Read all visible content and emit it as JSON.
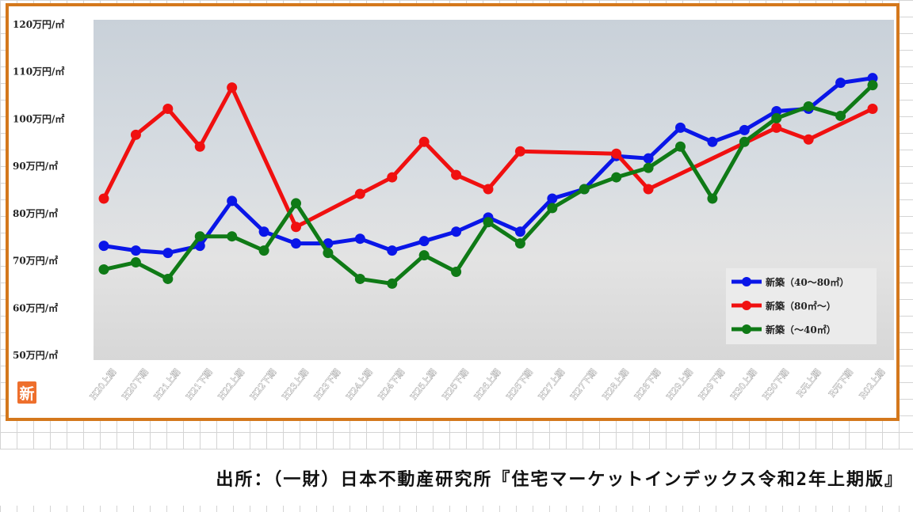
{
  "source_note": "出所：（一財）日本不動産研究所『住宅マーケットインデックス令和2年上期版』",
  "logo_text": "新",
  "chart_data": {
    "type": "line",
    "title": "",
    "xlabel": "",
    "ylabel": "",
    "ylim": [
      50,
      120
    ],
    "y_ticks": [
      {
        "value": 50,
        "label": "50万円/㎡"
      },
      {
        "value": 60,
        "label": "60万円/㎡"
      },
      {
        "value": 70,
        "label": "70万円/㎡"
      },
      {
        "value": 80,
        "label": "80万円/㎡"
      },
      {
        "value": 90,
        "label": "90万円/㎡"
      },
      {
        "value": 100,
        "label": "100万円/㎡"
      },
      {
        "value": 110,
        "label": "110万円/㎡"
      },
      {
        "value": 120,
        "label": "120万円/㎡"
      }
    ],
    "categories": [
      "H20上期",
      "H20下期",
      "H21上期",
      "H21下期",
      "H22上期",
      "H22下期",
      "H23上期",
      "H23下期",
      "H24上期",
      "H24下期",
      "H25上期",
      "H25下期",
      "H26上期",
      "H26下期",
      "H27上期",
      "H27下期",
      "H28上期",
      "H28下期",
      "H29上期",
      "H29下期",
      "H30上期",
      "H30下期",
      "R元上期",
      "R元下期",
      "R02上期"
    ],
    "grid": false,
    "legend_position": "bottom-right",
    "series": [
      {
        "name": "新築（40～80㎡）",
        "color": "#0a16e8",
        "values": [
          73,
          72,
          71.5,
          73,
          82.5,
          76,
          73.5,
          73.5,
          74.5,
          72,
          74,
          76,
          79,
          76,
          83,
          85,
          92,
          91.5,
          98,
          95,
          97.5,
          101.5,
          102,
          107.5,
          108.5
        ]
      },
      {
        "name": "新築（80㎡～）",
        "color": "#f01010",
        "values": [
          83,
          96.5,
          102,
          94,
          106.5,
          null,
          77,
          null,
          84,
          87.5,
          95,
          88,
          85,
          93,
          null,
          null,
          92.5,
          85,
          null,
          null,
          null,
          98,
          95.5,
          null,
          102
        ]
      },
      {
        "name": "新築（～40㎡）",
        "color": "#0f7a16",
        "values": [
          68,
          69.5,
          66,
          75,
          75,
          72,
          82,
          71.5,
          66,
          65,
          71,
          67.5,
          78,
          73.5,
          81,
          85,
          87.5,
          89.5,
          94,
          83,
          95,
          100,
          102.5,
          100.5,
          107
        ]
      }
    ]
  }
}
